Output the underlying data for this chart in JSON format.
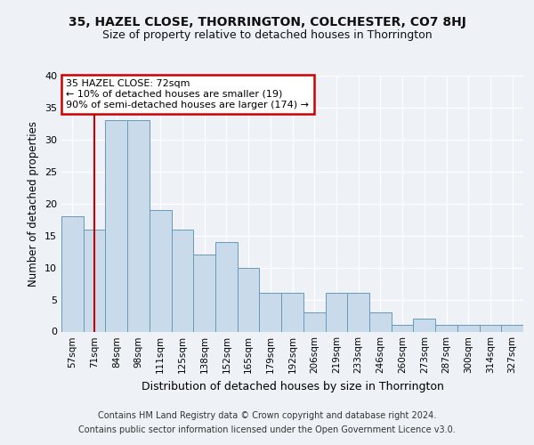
{
  "title1": "35, HAZEL CLOSE, THORRINGTON, COLCHESTER, CO7 8HJ",
  "title2": "Size of property relative to detached houses in Thorrington",
  "xlabel": "Distribution of detached houses by size in Thorrington",
  "ylabel": "Number of detached properties",
  "categories": [
    "57sqm",
    "71sqm",
    "84sqm",
    "98sqm",
    "111sqm",
    "125sqm",
    "138sqm",
    "152sqm",
    "165sqm",
    "179sqm",
    "192sqm",
    "206sqm",
    "219sqm",
    "233sqm",
    "246sqm",
    "260sqm",
    "273sqm",
    "287sqm",
    "300sqm",
    "314sqm",
    "327sqm"
  ],
  "bar_heights": [
    18,
    16,
    33,
    33,
    19,
    16,
    12,
    14,
    10,
    6,
    6,
    3,
    6,
    6,
    3,
    1,
    2,
    1,
    1,
    1,
    1
  ],
  "bar_color": "#c9daea",
  "bar_edgecolor": "#6699bb",
  "annotation_box_text": "35 HAZEL CLOSE: 72sqm\n← 10% of detached houses are smaller (19)\n90% of semi-detached houses are larger (174) →",
  "annotation_box_color": "#ffffff",
  "annotation_box_edgecolor": "#cc0000",
  "vline_color": "#cc0000",
  "vline_x_index": 1.0,
  "ylim": [
    0,
    40
  ],
  "yticks": [
    0,
    5,
    10,
    15,
    20,
    25,
    30,
    35,
    40
  ],
  "footer1": "Contains HM Land Registry data © Crown copyright and database right 2024.",
  "footer2": "Contains public sector information licensed under the Open Government Licence v3.0.",
  "bg_color": "#eef2f7",
  "plot_bg_color": "#eef2f7"
}
